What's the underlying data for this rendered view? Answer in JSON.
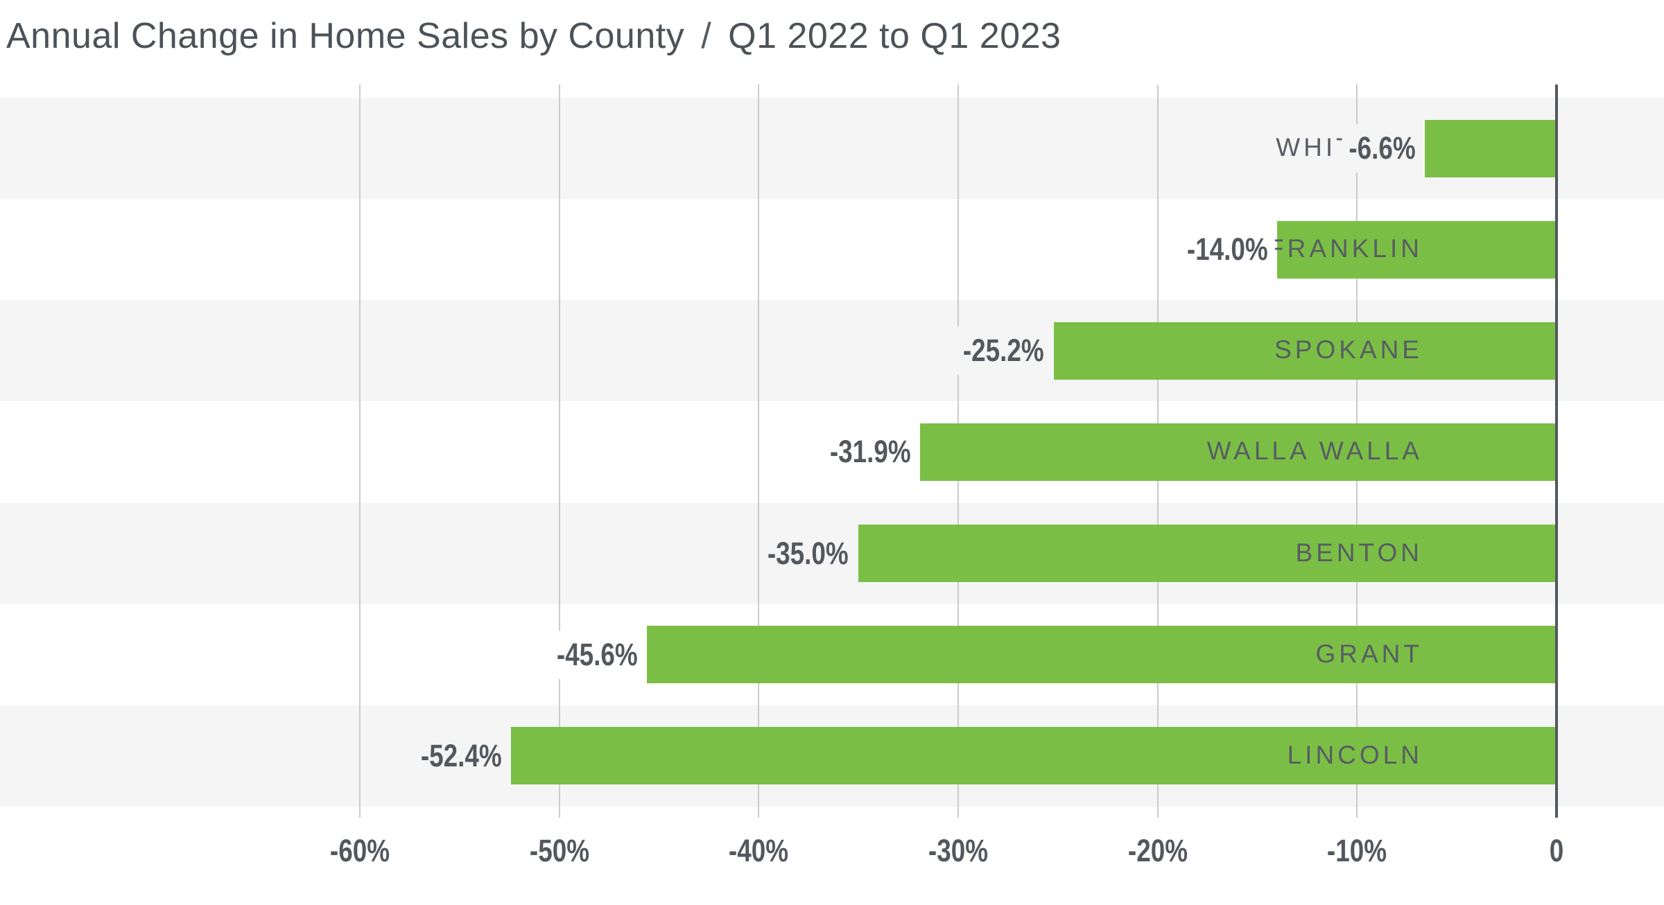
{
  "title": {
    "main": "Annual Change in Home Sales by County",
    "separator": "/",
    "period": "Q1 2022 to Q1 2023"
  },
  "chart_data": {
    "type": "bar",
    "orientation": "horizontal",
    "title": "Annual Change in Home Sales by County / Q1 2022 to Q1 2023",
    "categories": [
      "WHITMAN",
      "FRANKLIN",
      "SPOKANE",
      "WALLA WALLA",
      "BENTON",
      "GRANT",
      "LINCOLN"
    ],
    "values": [
      -6.6,
      -14.0,
      -25.2,
      -31.9,
      -35.0,
      -45.6,
      -52.4
    ],
    "value_labels": [
      "-6.6%",
      "-14.0%",
      "-25.2%",
      "-31.9%",
      "-35.0%",
      "-45.6%",
      "-52.4%"
    ],
    "unit": "%",
    "xlabel": "",
    "ylabel": "",
    "x_axis": {
      "range": [
        -60,
        0
      ],
      "ticks": [
        {
          "label": "-60%",
          "value": -60
        },
        {
          "label": "-50%",
          "value": -50
        },
        {
          "label": "-40%",
          "value": -40
        },
        {
          "label": "-30%",
          "value": -30
        },
        {
          "label": "-20%",
          "value": -20
        },
        {
          "label": "-10%",
          "value": -10
        },
        {
          "label": "0",
          "value": 0
        }
      ],
      "gridlines": true,
      "zero_line": true
    },
    "legend": "none",
    "row_banding": "alternating, starting with first row"
  },
  "colors": {
    "bar": "#7bbe45",
    "band": "#f5f5f6",
    "row_alt": "#ffffff",
    "gridline": "#c8ccce",
    "zero_axis": "#53585e",
    "value_text": "#53585e",
    "category_text": "#575d63",
    "title_text": "#4c5257"
  }
}
